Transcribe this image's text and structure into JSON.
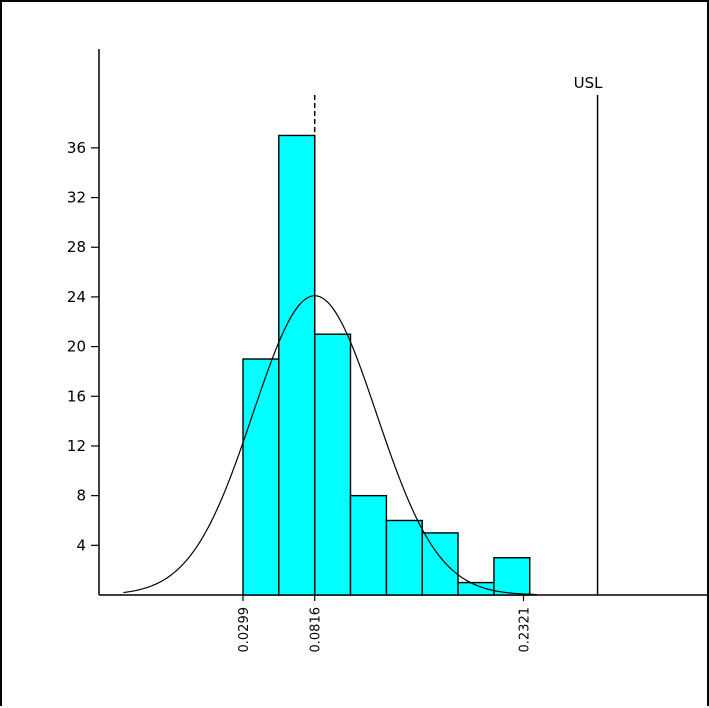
{
  "chart_data": {
    "type": "bar",
    "title": "",
    "xlabel": "",
    "ylabel": "",
    "ylim": [
      0,
      40
    ],
    "yticks": [
      4,
      8,
      12,
      16,
      20,
      24,
      28,
      32,
      36
    ],
    "bars": [
      {
        "x0": 0.0299,
        "x1": 0.0557,
        "value": 19
      },
      {
        "x0": 0.0557,
        "x1": 0.0816,
        "value": 37
      },
      {
        "x0": 0.0816,
        "x1": 0.1074,
        "value": 21
      },
      {
        "x0": 0.1074,
        "x1": 0.1333,
        "value": 8
      },
      {
        "x0": 0.1333,
        "x1": 0.1591,
        "value": 6
      },
      {
        "x0": 0.1591,
        "x1": 0.1849,
        "value": 5
      },
      {
        "x0": 0.1849,
        "x1": 0.2108,
        "value": 1
      },
      {
        "x0": 0.2108,
        "x1": 0.2366,
        "value": 3
      }
    ],
    "xtick_labels": [
      {
        "value": 0.0299,
        "label": "0.0299"
      },
      {
        "value": 0.0816,
        "label": "0.0816"
      },
      {
        "value": 0.2321,
        "label": "0.2321"
      }
    ],
    "normal_curve": {
      "mean": 0.0816,
      "sd": 0.0445,
      "peak": 24.1
    },
    "mean_line": {
      "value": 0.0816,
      "style": "dashed"
    },
    "usl": {
      "label": "USL",
      "value": 0.2855
    },
    "bar_color": "#00ffff",
    "bar_edge_color": "#000000",
    "grid": false,
    "legend": "none"
  }
}
